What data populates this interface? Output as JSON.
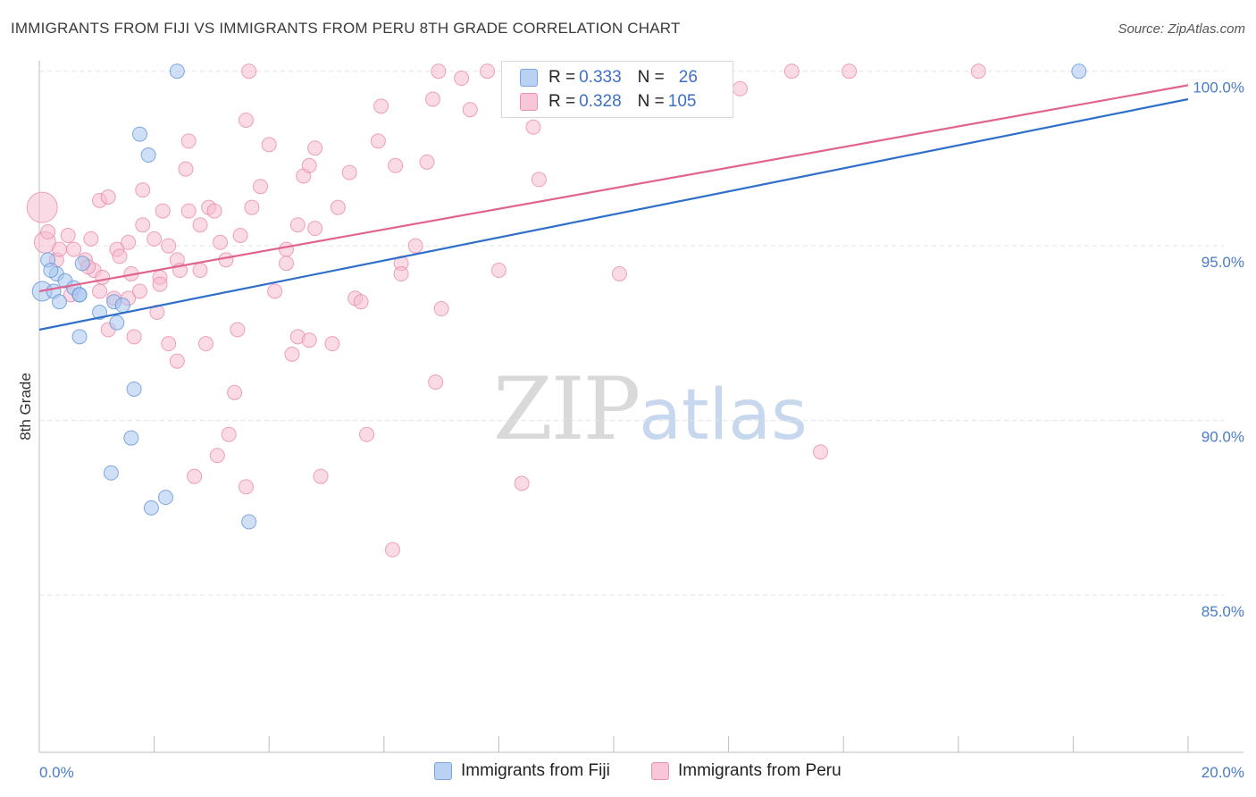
{
  "title": "IMMIGRANTS FROM FIJI VS IMMIGRANTS FROM PERU 8TH GRADE CORRELATION CHART",
  "source": "Source: ZipAtlas.com",
  "watermark": {
    "part1": "ZIP",
    "part2": "atlas"
  },
  "colors": {
    "fiji_fill": "#a8c6ee",
    "fiji_stroke": "#5b8fd6",
    "fiji_line": "#2f6fc9",
    "peru_fill": "#f6bcd0",
    "peru_stroke": "#e586a8",
    "peru_line": "#e0648f",
    "axis_text": "#4a7cc7",
    "grid": "#e3e3e3"
  },
  "legend": {
    "fiji": {
      "r_label": "R = ",
      "r_value": "0.333",
      "n_label": "N = ",
      "n_value": "26"
    },
    "peru": {
      "r_label": "R = ",
      "r_value": "0.328",
      "n_label": "N = ",
      "n_value": "105"
    }
  },
  "bottom_legend": {
    "fiji": "Immigrants from Fiji",
    "peru": "Immigrants from Peru"
  },
  "chart_data": {
    "type": "scatter",
    "title": "IMMIGRANTS FROM FIJI VS IMMIGRANTS FROM PERU 8TH GRADE CORRELATION CHART",
    "xlabel": "",
    "ylabel": "8th Grade",
    "xlim": [
      0,
      20
    ],
    "ylim": [
      80.5,
      100.3
    ],
    "x_tick_labels": [
      "0.0%",
      "20.0%"
    ],
    "y_ticks": [
      85,
      90,
      95,
      100
    ],
    "y_tick_labels": [
      "85.0%",
      "90.0%",
      "95.0%",
      "100.0%"
    ],
    "series": [
      {
        "name": "Immigrants from Fiji",
        "r": 0.333,
        "n": 26,
        "trend": {
          "x": [
            0,
            20
          ],
          "y": [
            92.6,
            99.2
          ]
        },
        "points": [
          [
            0.05,
            93.7
          ],
          [
            0.15,
            94.6
          ],
          [
            0.25,
            93.7
          ],
          [
            0.35,
            93.4
          ],
          [
            0.3,
            94.2
          ],
          [
            0.45,
            94.0
          ],
          [
            0.6,
            93.8
          ],
          [
            0.75,
            94.5
          ],
          [
            0.7,
            93.6
          ],
          [
            1.05,
            93.1
          ],
          [
            1.3,
            93.4
          ],
          [
            1.45,
            93.3
          ],
          [
            1.35,
            92.8
          ],
          [
            0.7,
            93.6
          ],
          [
            0.7,
            92.4
          ],
          [
            1.75,
            98.2
          ],
          [
            1.9,
            97.6
          ],
          [
            2.4,
            100.0
          ],
          [
            1.65,
            90.9
          ],
          [
            1.6,
            89.5
          ],
          [
            1.25,
            88.5
          ],
          [
            2.2,
            87.8
          ],
          [
            1.95,
            87.5
          ],
          [
            3.65,
            87.1
          ],
          [
            18.1,
            100.0
          ],
          [
            0.2,
            94.3
          ]
        ]
      },
      {
        "name": "Immigrants from Peru",
        "r": 0.328,
        "n": 105,
        "trend": {
          "x": [
            0,
            20
          ],
          "y": [
            93.7,
            99.6
          ]
        },
        "points": [
          [
            0.05,
            96.1
          ],
          [
            0.1,
            95.1
          ],
          [
            0.5,
            95.3
          ],
          [
            0.3,
            94.6
          ],
          [
            0.6,
            94.9
          ],
          [
            0.8,
            94.6
          ],
          [
            0.95,
            94.3
          ],
          [
            1.05,
            93.7
          ],
          [
            1.35,
            94.9
          ],
          [
            1.4,
            94.7
          ],
          [
            1.6,
            94.2
          ],
          [
            1.55,
            93.5
          ],
          [
            1.3,
            93.5
          ],
          [
            1.2,
            92.6
          ],
          [
            1.65,
            92.4
          ],
          [
            1.05,
            96.3
          ],
          [
            1.2,
            96.4
          ],
          [
            1.8,
            95.6
          ],
          [
            1.8,
            96.6
          ],
          [
            2.0,
            95.2
          ],
          [
            2.1,
            94.1
          ],
          [
            2.25,
            95.0
          ],
          [
            2.4,
            94.6
          ],
          [
            2.45,
            94.3
          ],
          [
            2.1,
            93.9
          ],
          [
            2.05,
            93.1
          ],
          [
            2.25,
            92.2
          ],
          [
            2.4,
            91.7
          ],
          [
            2.55,
            97.2
          ],
          [
            2.6,
            96.0
          ],
          [
            2.6,
            98.0
          ],
          [
            2.8,
            95.6
          ],
          [
            2.8,
            94.3
          ],
          [
            2.95,
            96.1
          ],
          [
            3.05,
            96.0
          ],
          [
            3.15,
            95.1
          ],
          [
            3.25,
            94.6
          ],
          [
            2.9,
            92.2
          ],
          [
            3.45,
            92.6
          ],
          [
            3.5,
            95.3
          ],
          [
            3.7,
            96.1
          ],
          [
            3.85,
            96.7
          ],
          [
            3.4,
            90.8
          ],
          [
            3.6,
            98.6
          ],
          [
            3.3,
            89.6
          ],
          [
            3.6,
            88.1
          ],
          [
            4.0,
            97.9
          ],
          [
            4.1,
            93.7
          ],
          [
            4.3,
            94.9
          ],
          [
            4.5,
            95.6
          ],
          [
            4.6,
            97.0
          ],
          [
            4.7,
            97.3
          ],
          [
            4.8,
            97.8
          ],
          [
            4.8,
            95.5
          ],
          [
            4.5,
            92.4
          ],
          [
            4.7,
            92.3
          ],
          [
            4.4,
            91.9
          ],
          [
            5.1,
            92.2
          ],
          [
            5.2,
            96.1
          ],
          [
            5.4,
            97.1
          ],
          [
            5.5,
            93.5
          ],
          [
            5.6,
            93.4
          ],
          [
            5.7,
            89.6
          ],
          [
            5.9,
            98.0
          ],
          [
            5.95,
            99.0
          ],
          [
            6.2,
            97.3
          ],
          [
            6.3,
            94.5
          ],
          [
            6.55,
            95.0
          ],
          [
            6.75,
            97.4
          ],
          [
            6.85,
            99.2
          ],
          [
            6.9,
            91.1
          ],
          [
            7.0,
            93.2
          ],
          [
            6.95,
            100.0
          ],
          [
            7.35,
            99.8
          ],
          [
            7.5,
            98.9
          ],
          [
            7.8,
            100.0
          ],
          [
            8.0,
            94.3
          ],
          [
            8.4,
            88.2
          ],
          [
            8.6,
            98.4
          ],
          [
            8.7,
            96.9
          ],
          [
            9.05,
            100.0
          ],
          [
            10.1,
            94.2
          ],
          [
            10.5,
            99.8
          ],
          [
            11.7,
            100.0
          ],
          [
            12.2,
            99.5
          ],
          [
            13.1,
            100.0
          ],
          [
            13.6,
            89.1
          ],
          [
            14.1,
            100.0
          ],
          [
            16.35,
            100.0
          ],
          [
            3.65,
            100.0
          ],
          [
            6.15,
            86.3
          ],
          [
            1.55,
            95.1
          ],
          [
            0.9,
            95.2
          ],
          [
            3.1,
            89.0
          ],
          [
            4.3,
            94.5
          ],
          [
            2.7,
            88.4
          ],
          [
            4.9,
            88.4
          ],
          [
            0.35,
            94.9
          ],
          [
            0.85,
            94.4
          ],
          [
            1.1,
            94.1
          ],
          [
            0.15,
            95.4
          ],
          [
            0.55,
            93.6
          ],
          [
            2.15,
            96.0
          ],
          [
            1.75,
            93.7
          ],
          [
            6.3,
            94.2
          ]
        ]
      }
    ]
  }
}
